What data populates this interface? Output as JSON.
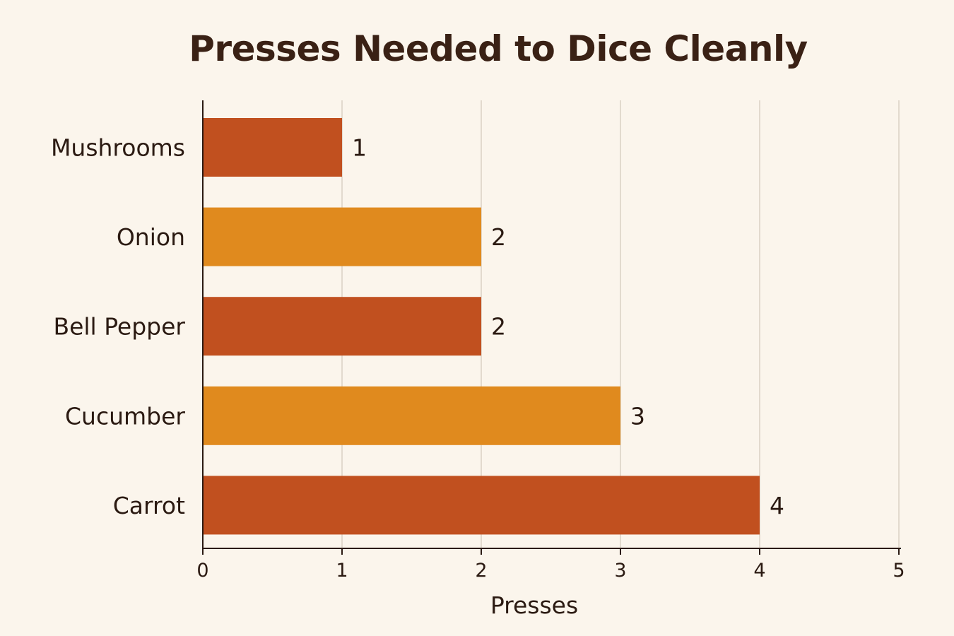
{
  "chart_data": {
    "type": "bar",
    "orientation": "horizontal",
    "title": "Presses Needed to Dice Cleanly",
    "xlabel": "Presses",
    "ylabel": "",
    "categories": [
      "Mushrooms",
      "Onion",
      "Bell Pepper",
      "Cucumber",
      "Carrot"
    ],
    "values": [
      1,
      2,
      2,
      3,
      4
    ],
    "bar_colors": [
      "#c1501f",
      "#e08a1e",
      "#c1501f",
      "#e08a1e",
      "#c1501f"
    ],
    "xlim": [
      0,
      5
    ],
    "xticks": [
      0,
      1,
      2,
      3,
      4,
      5
    ],
    "grid": "vertical",
    "legend": "none",
    "data_labels": true
  },
  "colors": {
    "background": "#fbf5ec",
    "grid": "#d9d1c4",
    "axis": "#2b1a12",
    "text": "#2b1a12"
  }
}
